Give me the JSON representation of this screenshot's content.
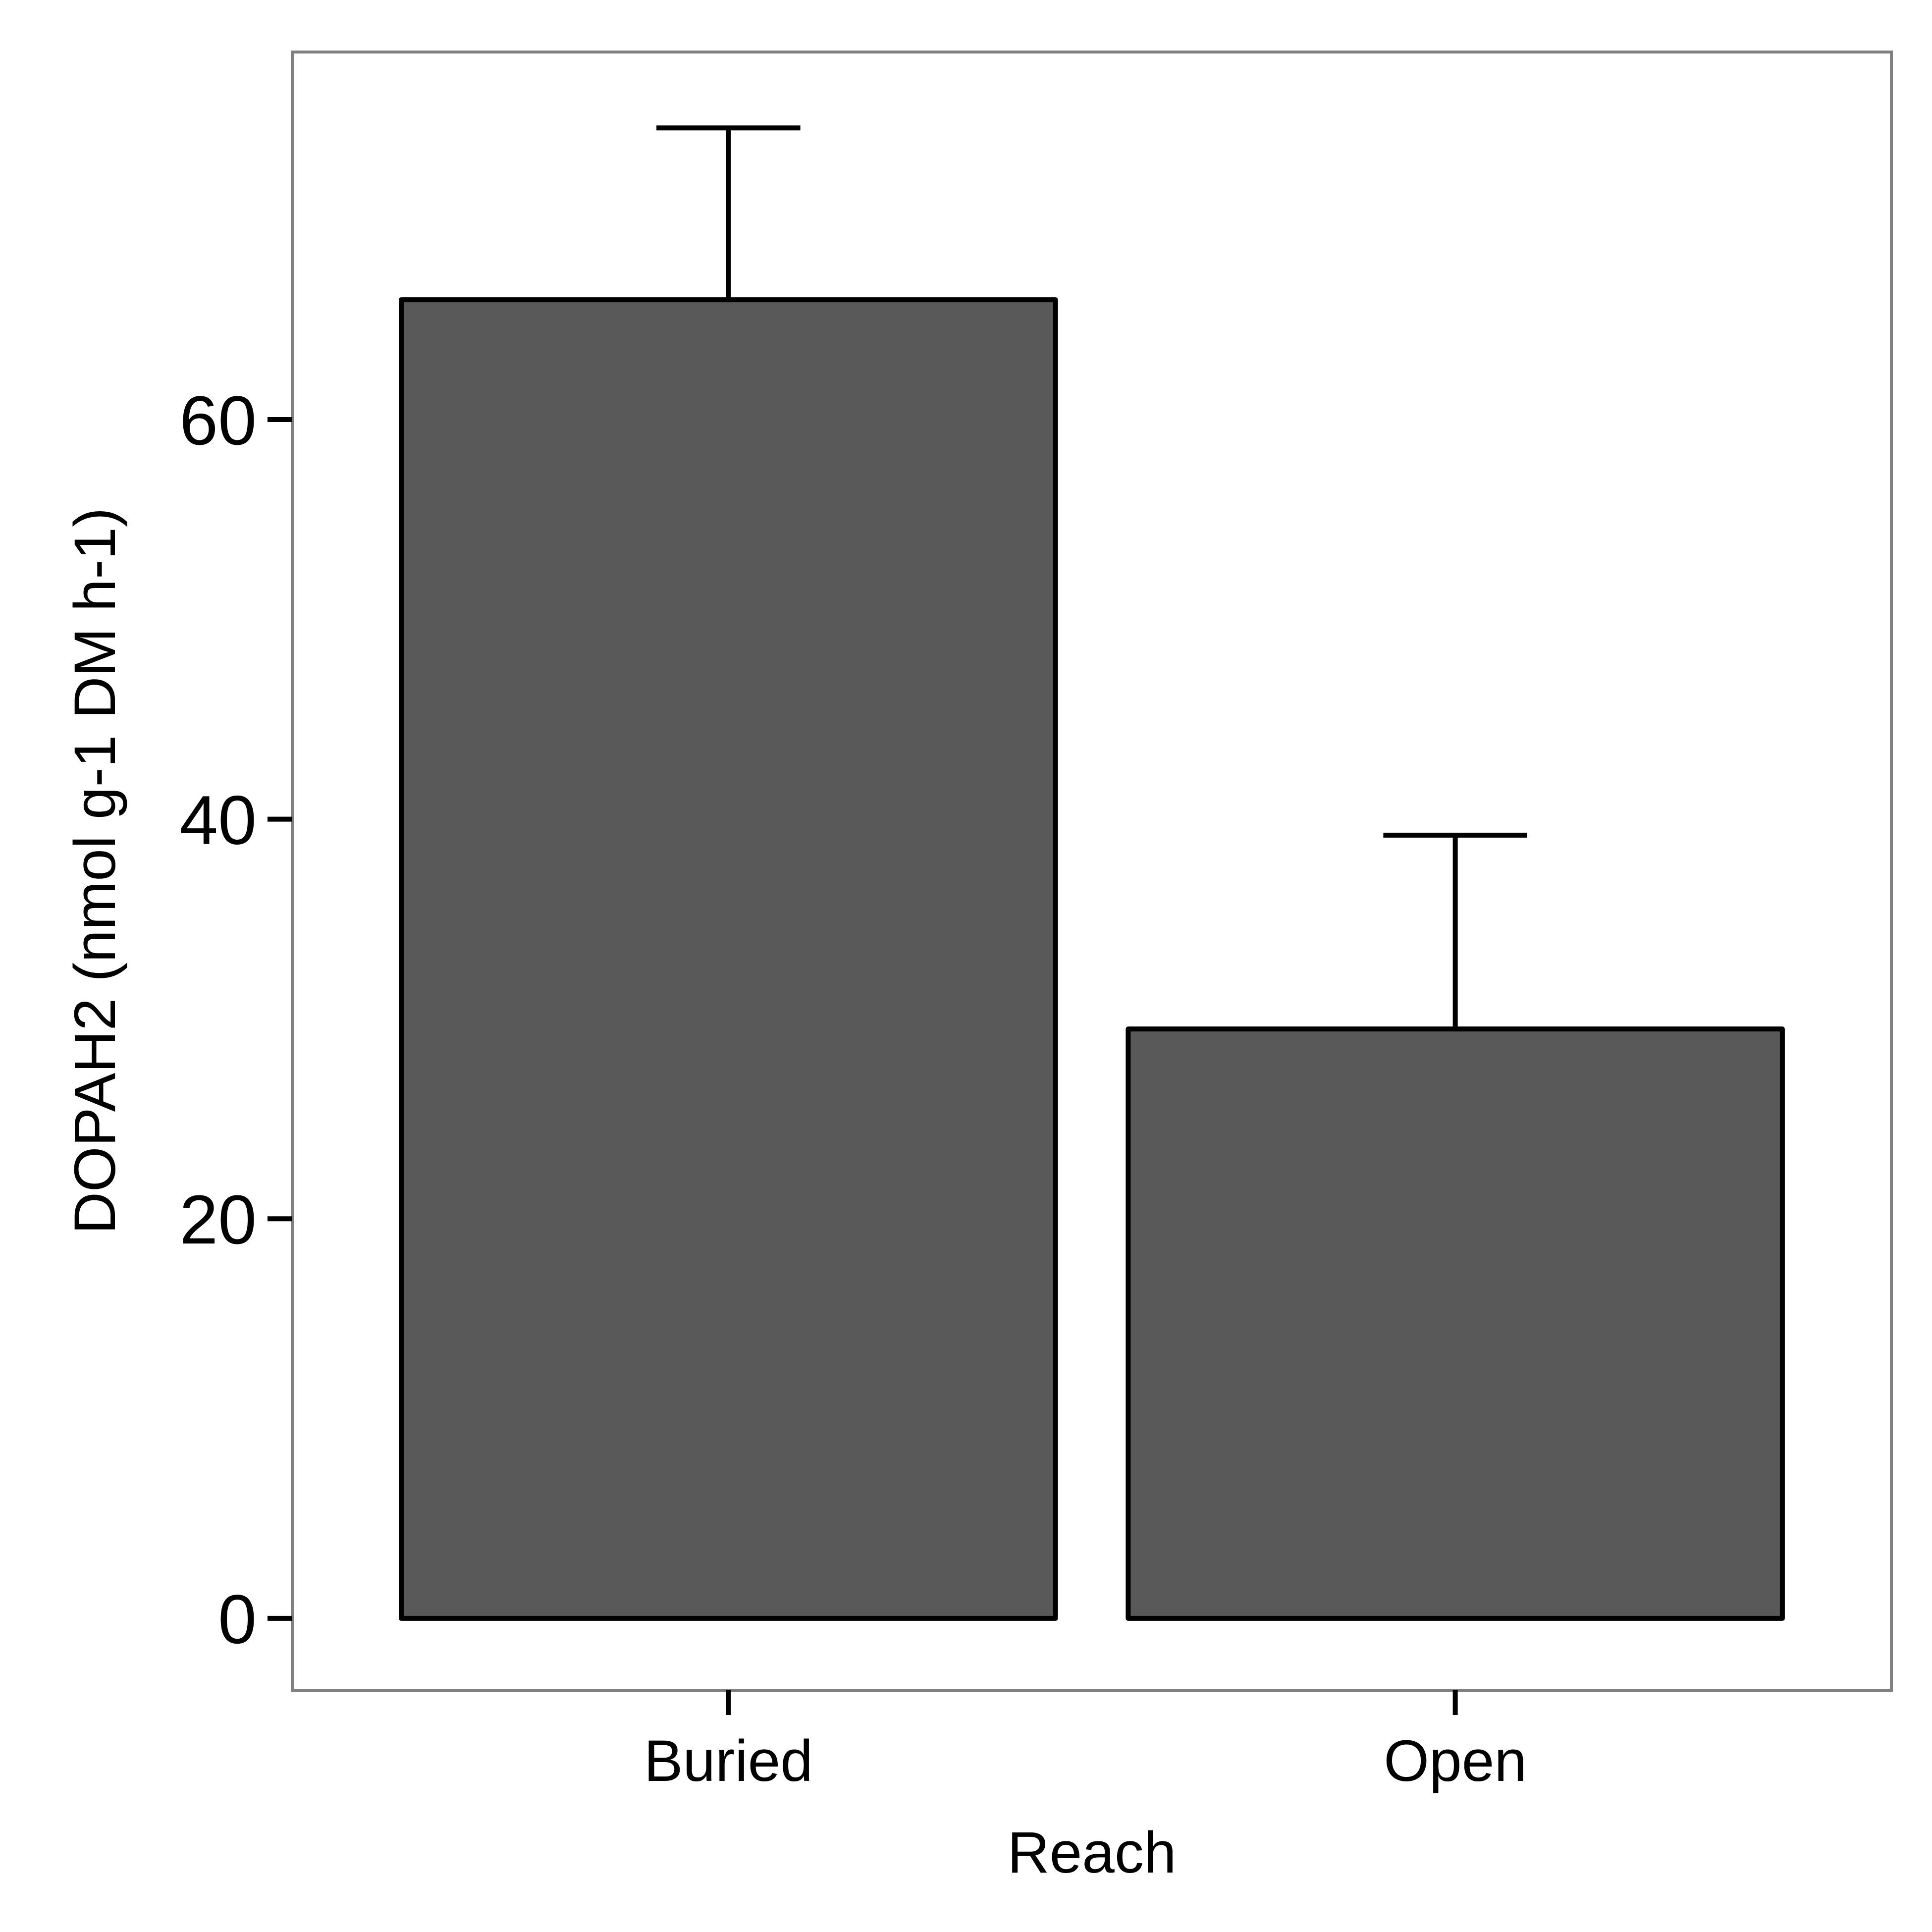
{
  "chart_data": {
    "type": "bar",
    "title": "",
    "xlabel": "Reach",
    "ylabel": "DOPAH2 (nmol g-1 DM h-1)",
    "categories": [
      "Buried",
      "Open"
    ],
    "values": [
      66.0,
      29.5
    ],
    "error_upper": [
      74.6,
      39.2
    ],
    "ylim": [
      -3.6,
      78.4
    ],
    "yticks": [
      0,
      20,
      40,
      60
    ],
    "ytick_labels": [
      "0",
      "20",
      "40",
      "60"
    ],
    "grid": false,
    "legend": "none",
    "colors": {
      "bar_fill": "#595959",
      "bar_stroke": "#000000",
      "panel_border": "#808080",
      "text": "#000000"
    }
  }
}
